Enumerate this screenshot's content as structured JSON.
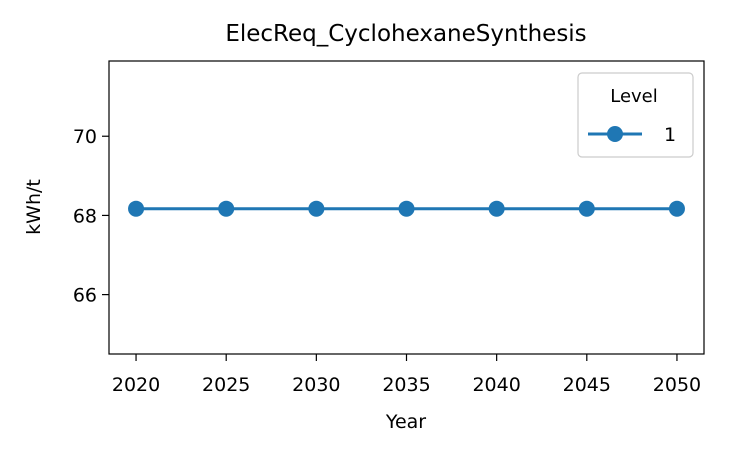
{
  "chart_data": {
    "type": "line",
    "title": "ElecReq_CyclohexaneSynthesis",
    "xlabel": "Year",
    "ylabel": "kWh/t",
    "x": [
      2020,
      2025,
      2030,
      2035,
      2040,
      2045,
      2050
    ],
    "x_ticks": [
      "2020",
      "2025",
      "2030",
      "2035",
      "2040",
      "2045",
      "2050"
    ],
    "y_ticks": [
      "66",
      "68",
      "70"
    ],
    "xlim": [
      2018.5,
      2051.5
    ],
    "ylim": [
      64.5,
      71.9
    ],
    "grid": false,
    "legend": {
      "title": "Level",
      "placement": "upper-right"
    },
    "series": [
      {
        "name": "1",
        "color": "#1f77b4",
        "marker": "circle",
        "values": [
          68.17,
          68.17,
          68.17,
          68.17,
          68.17,
          68.17,
          68.17
        ]
      }
    ]
  }
}
